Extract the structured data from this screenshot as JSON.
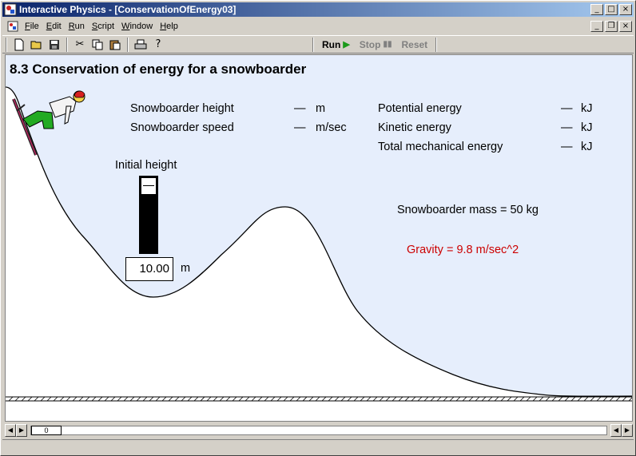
{
  "window": {
    "app_title": "Interactive Physics - [ConservationOfEnergy03]"
  },
  "menu": {
    "items": [
      {
        "key": "F",
        "rest": "ile"
      },
      {
        "key": "E",
        "rest": "dit"
      },
      {
        "key": "R",
        "rest": "un"
      },
      {
        "key": "S",
        "rest": "cript"
      },
      {
        "key": "W",
        "rest": "indow"
      },
      {
        "key": "H",
        "rest": "elp"
      }
    ]
  },
  "toolbar": {
    "run_label": "Run",
    "stop_label": "Stop",
    "reset_label": "Reset"
  },
  "simulation": {
    "heading": "8.3 Conservation of energy for a snowboarder",
    "readouts_left": [
      {
        "label": "Snowboarder height",
        "value": "—",
        "unit": "m"
      },
      {
        "label": "Snowboarder speed",
        "value": "—",
        "unit": "m/sec"
      }
    ],
    "readouts_right": [
      {
        "label": "Potential energy",
        "value": "—",
        "unit": "kJ"
      },
      {
        "label": "Kinetic energy",
        "value": "—",
        "unit": "kJ"
      },
      {
        "label": "Total mechanical energy",
        "value": "—",
        "unit": "kJ"
      }
    ],
    "initial_height_label": "Initial height",
    "initial_height_value": "10.00",
    "initial_height_unit": "m",
    "mass_text": "Snowboarder mass = 50 kg",
    "gravity_text": "Gravity = 9.8 m/sec^2"
  },
  "playback": {
    "frame": "0"
  },
  "colors": {
    "sky": "#e6eefc",
    "gravity_text": "#cc0000",
    "run_arrow": "#1a9a1a"
  }
}
